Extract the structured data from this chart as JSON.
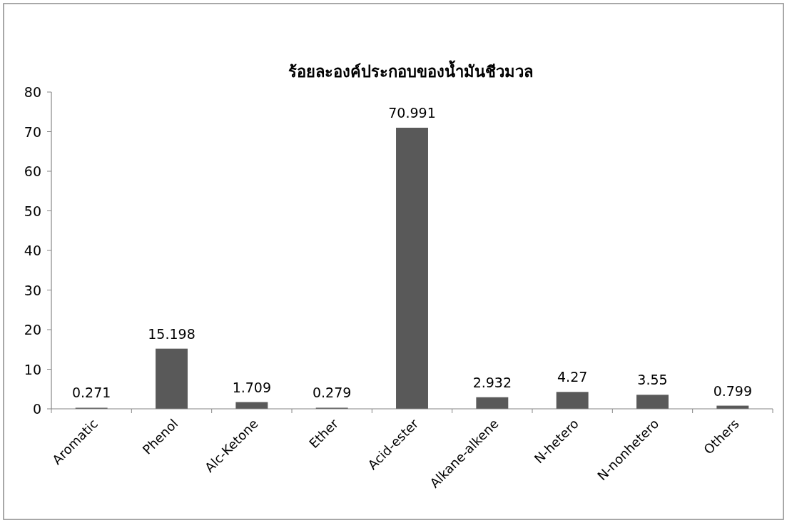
{
  "chart_data": {
    "type": "bar",
    "title": "ร้อยละองค์ประกอบของน้ำมันชีวมวล",
    "categories": [
      "Aromatic",
      "Phenol",
      "Alc-Ketone",
      "Ether",
      "Acid-ester",
      "Alkane-alkene",
      "N-hetero",
      "N-nonhetero",
      "Others"
    ],
    "values": [
      0.271,
      15.198,
      1.709,
      0.279,
      70.991,
      2.932,
      4.27,
      3.55,
      0.799
    ],
    "color": "#595959",
    "ylim": [
      0,
      80
    ],
    "yticks": [
      0,
      10,
      20,
      30,
      40,
      50,
      60,
      70,
      80
    ],
    "data_labels": true
  }
}
